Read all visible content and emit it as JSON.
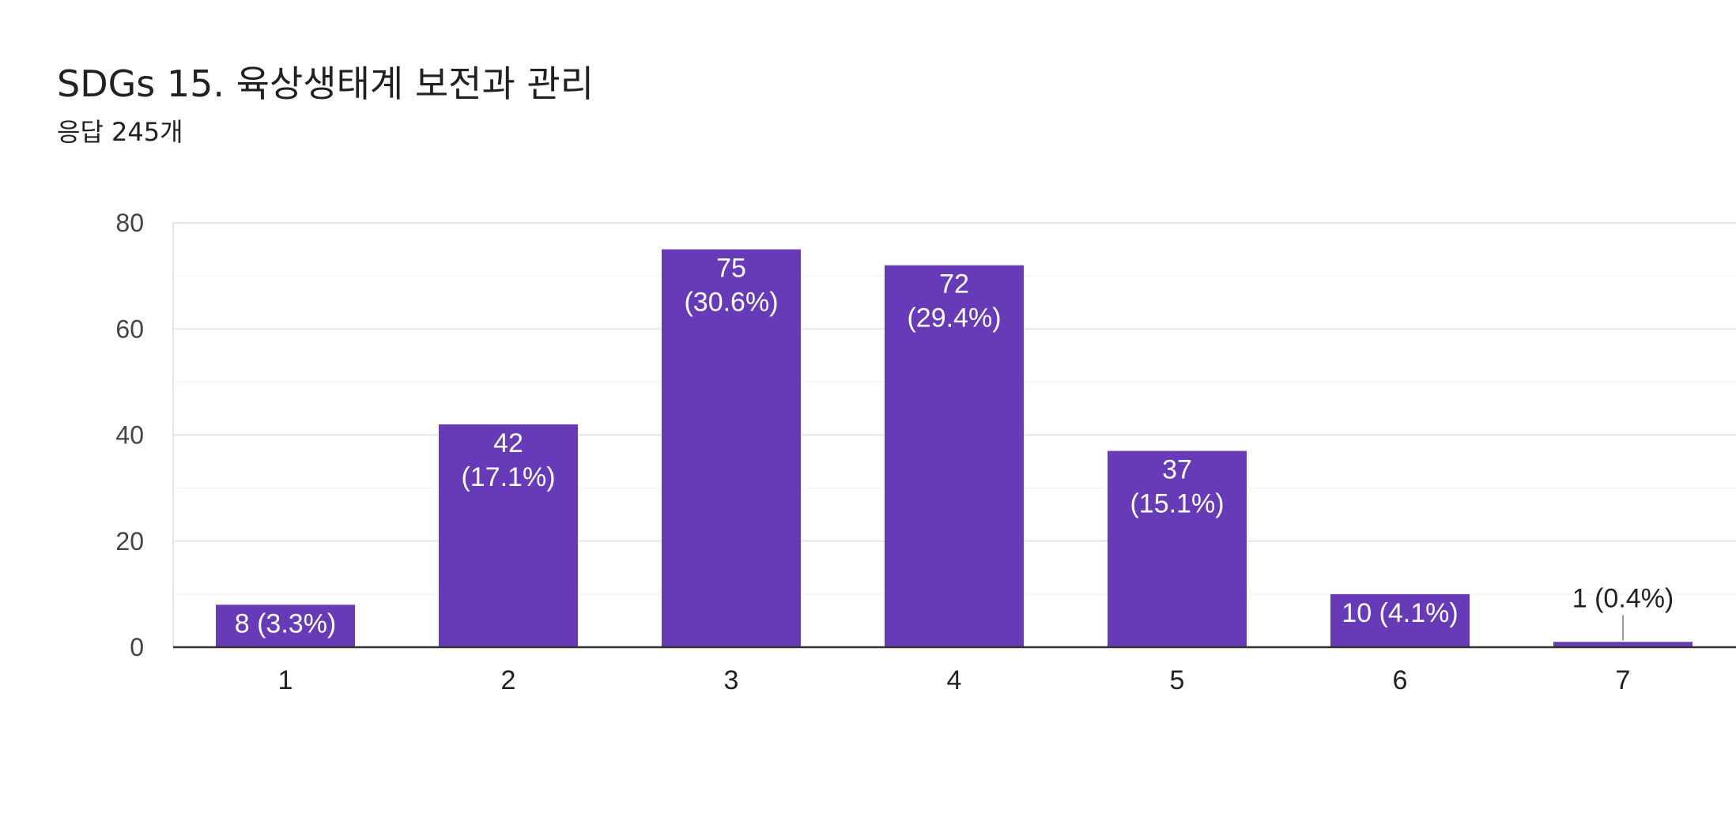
{
  "header": {
    "title": "SDGs 15. 육상생태계 보전과 관리",
    "subtitle": "응답 245개"
  },
  "colors": {
    "bar": "#673ab7",
    "grid_major": "#e6e6e6",
    "grid_minor": "#f4f4f4",
    "axis_line": "#333333",
    "tick_text": "#444444",
    "label_inside": "#ffffff",
    "label_outside": "#222222"
  },
  "chart_data": {
    "type": "bar",
    "categories": [
      "1",
      "2",
      "3",
      "4",
      "5",
      "6",
      "7"
    ],
    "values": [
      8,
      42,
      75,
      72,
      37,
      10,
      1
    ],
    "data_labels": [
      "8 (3.3%)",
      "42 (17.1%)",
      "75 (30.6%)",
      "72 (29.4%)",
      "37 (15.1%)",
      "10 (4.1%)",
      "1 (0.4%)"
    ],
    "ylim": [
      0,
      80
    ],
    "yticks": [
      0,
      20,
      40,
      60,
      80
    ],
    "grid": true
  }
}
